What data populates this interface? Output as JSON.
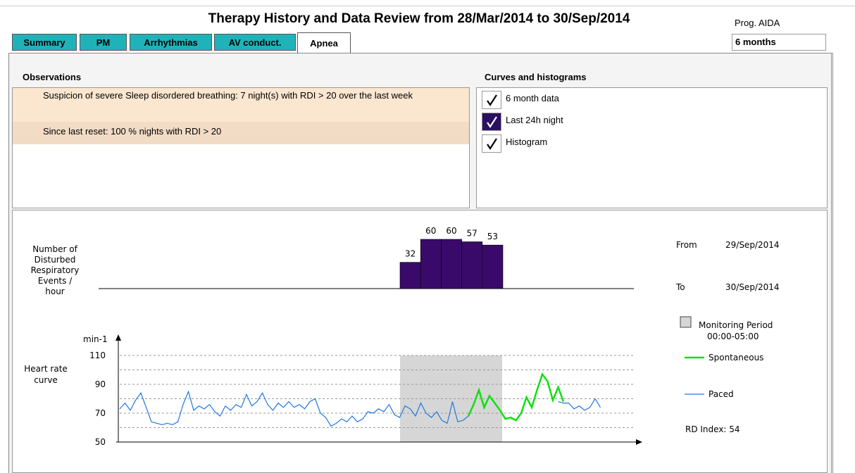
{
  "header": {
    "title": "Therapy History and Data Review from 28/Mar/2014 to 30/Sep/2014",
    "program_label": "Prog. AIDA",
    "period": "6 months"
  },
  "tabs": [
    "Summary",
    "PM",
    "Arrhythmias",
    "AV conduct.",
    "Apnea"
  ],
  "active_tab": 4,
  "observations": {
    "title": "Observations",
    "items": [
      "Suspicion of severe Sleep disordered breathing: 7 night(s) with RDI > 20 over the last week",
      "Since last reset: 100 % nights with RDI > 20"
    ]
  },
  "curves": {
    "title": "Curves and histograms",
    "options": [
      {
        "label": "6 month data",
        "checked": true,
        "highlighted": false
      },
      {
        "label": "Last 24h night",
        "checked": true,
        "highlighted": true
      },
      {
        "label": "Histogram",
        "checked": true,
        "highlighted": false
      }
    ]
  },
  "histogram": {
    "label_lines": [
      "Number of",
      "Disturbed",
      "Respiratory",
      "Events /",
      "hour"
    ],
    "color": "#3a0a6a",
    "values": [
      32,
      60,
      60,
      57,
      53
    ]
  },
  "heart_rate": {
    "label_lines": [
      "Heart rate",
      "curve"
    ],
    "unit": "min-1",
    "ylim": [
      50,
      110
    ],
    "yticks": [
      50,
      70,
      90,
      110
    ],
    "grid_lines": [
      60,
      70,
      80,
      90,
      100,
      110
    ],
    "series": [
      {
        "name": "Paced",
        "color": "#1e78e0",
        "values": [
          73,
          77,
          72,
          79,
          84,
          74,
          64,
          63,
          62,
          63,
          62,
          64,
          76,
          85,
          72,
          75,
          73,
          76,
          71,
          68,
          75,
          72,
          76,
          74,
          83,
          75,
          78,
          84,
          76,
          72,
          77,
          74,
          78,
          74,
          76,
          73,
          78,
          80,
          70,
          67,
          61,
          63,
          66,
          64,
          68,
          64,
          66,
          71,
          70,
          73,
          71,
          76,
          69,
          67,
          75,
          73,
          68,
          77,
          70,
          67,
          71,
          65,
          63,
          78,
          64,
          65,
          68,
          null,
          null,
          null,
          null,
          null,
          null,
          null,
          null,
          null,
          null,
          null,
          null,
          null,
          null,
          null,
          null,
          78,
          77,
          77,
          73,
          75,
          72,
          74,
          80,
          74
        ]
      },
      {
        "name": "Spontaneous",
        "color": "#10e010",
        "values": [
          null,
          null,
          null,
          null,
          null,
          null,
          null,
          null,
          null,
          null,
          null,
          null,
          null,
          null,
          null,
          null,
          null,
          null,
          null,
          null,
          null,
          null,
          null,
          null,
          null,
          null,
          null,
          null,
          null,
          null,
          null,
          null,
          null,
          null,
          null,
          null,
          null,
          null,
          null,
          null,
          null,
          null,
          null,
          null,
          null,
          null,
          null,
          null,
          null,
          null,
          null,
          null,
          null,
          null,
          null,
          null,
          null,
          null,
          null,
          null,
          null,
          null,
          null,
          null,
          null,
          null,
          68,
          76,
          86,
          74,
          82,
          77,
          72,
          66,
          67,
          65,
          70,
          81,
          74,
          86,
          97,
          92,
          79,
          88,
          78,
          null,
          null,
          null,
          null,
          null,
          null,
          null,
          null
        ]
      }
    ]
  },
  "legend": {
    "from_label": "From",
    "from": "29/Sep/2014",
    "to_label": "To",
    "to": "30/Sep/2014",
    "monitoring": "Monitoring Period",
    "monitoring_period": "00:00-05:00",
    "rd_index": "RD Index: 54"
  }
}
